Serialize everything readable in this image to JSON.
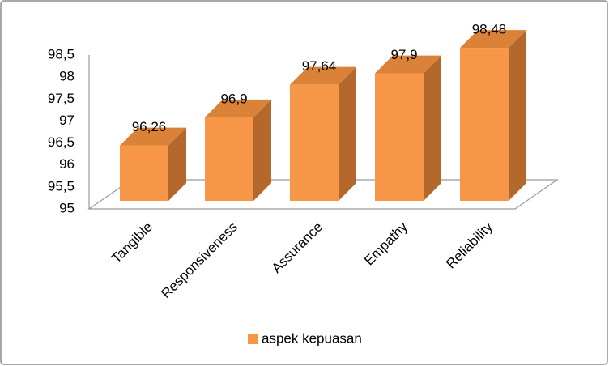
{
  "chart_data": {
    "type": "bar3d",
    "categories": [
      "Tangible",
      "Responsiveness",
      "Assurance",
      "Empathy",
      "Reliability"
    ],
    "series": [
      {
        "name": "aspek kepuasan",
        "color": "#f79646",
        "values": [
          96.26,
          96.9,
          97.64,
          97.9,
          98.48
        ],
        "value_labels": [
          "96,26",
          "96,9",
          "97,64",
          "97,9",
          "98,48"
        ]
      }
    ],
    "ylim": [
      95,
      98.5
    ],
    "yticks": [
      95,
      {
        "value": 95.5,
        "label": "95,5"
      },
      96,
      {
        "value": 96.5,
        "label": "96,5"
      },
      97,
      {
        "value": 97.5,
        "label": "97,5"
      },
      98,
      {
        "value": 98.5,
        "label": "98,5"
      }
    ],
    "legend": "bottom"
  }
}
